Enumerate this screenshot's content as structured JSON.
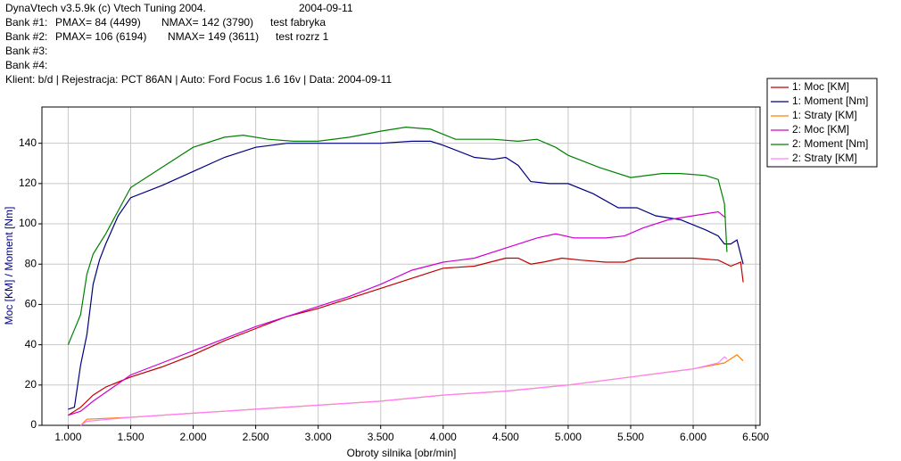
{
  "chart_data": {
    "type": "line",
    "header": {
      "program": "DynaVtech v3.5.9k (c) Vtech Tuning 2004.",
      "date": "2004-09-11",
      "banks": [
        {
          "label": "Bank #1:",
          "pmax": "PMAX= 84 (4499)",
          "nmax": "NMAX= 142 (3790)",
          "note": "test fabryka"
        },
        {
          "label": "Bank #2:",
          "pmax": "PMAX= 106 (6194)",
          "nmax": "NMAX= 149 (3611)",
          "note": "test rozrz 1"
        },
        {
          "label": "Bank #3:"
        },
        {
          "label": "Bank #4:"
        }
      ],
      "client": "Klient: b/d | Rejestracja: PCT 86AN | Auto: Ford Focus 1.6 16v | Data: 2004-09-11"
    },
    "x_label": "Obroty silnika [obr/min]",
    "y_label": "Moc [KM] / Moment [Nm]",
    "xlim": [
      790,
      6535
    ],
    "ylim": [
      0,
      158
    ],
    "xticks": [
      {
        "value": 1000,
        "label": "1.000"
      },
      {
        "value": 1500,
        "label": "1.500"
      },
      {
        "value": 2000,
        "label": "2.000"
      },
      {
        "value": 2500,
        "label": "2.500"
      },
      {
        "value": 3000,
        "label": "3.000"
      },
      {
        "value": 3500,
        "label": "3.500"
      },
      {
        "value": 4000,
        "label": "4.000"
      },
      {
        "value": 4500,
        "label": "4.500"
      },
      {
        "value": 5000,
        "label": "5.000"
      },
      {
        "value": 5500,
        "label": "5.500"
      },
      {
        "value": 6000,
        "label": "6.000"
      },
      {
        "value": 6500,
        "label": "6.500"
      }
    ],
    "yticks": [
      0,
      20,
      40,
      60,
      80,
      100,
      120,
      140
    ],
    "grid": true,
    "legend": "top-right",
    "series": [
      {
        "name": "1: Moc [KM]",
        "color": "#c00000",
        "x": [
          1000,
          1100,
          1200,
          1300,
          1500,
          1750,
          2000,
          2250,
          2500,
          2750,
          3000,
          3250,
          3500,
          3750,
          4000,
          4250,
          4500,
          4600,
          4700,
          4800,
          4950,
          5100,
          5300,
          5450,
          5550,
          5800,
          6000,
          6200,
          6300,
          6380,
          6400
        ],
        "values": [
          5,
          9,
          15,
          19,
          24,
          29,
          35,
          42,
          48,
          54,
          58,
          63,
          68,
          73,
          78,
          79,
          83,
          83,
          80,
          81,
          83,
          82,
          81,
          81,
          83,
          83,
          83,
          82,
          79,
          81,
          71
        ]
      },
      {
        "name": "1: Moment [Nm]",
        "color": "#000080",
        "x": [
          1000,
          1050,
          1100,
          1150,
          1200,
          1250,
          1300,
          1400,
          1500,
          1750,
          2000,
          2250,
          2500,
          2750,
          3000,
          3250,
          3500,
          3750,
          3900,
          4000,
          4250,
          4400,
          4500,
          4600,
          4700,
          4850,
          5000,
          5200,
          5400,
          5550,
          5700,
          5900,
          6100,
          6200,
          6250,
          6300,
          6350,
          6400
        ],
        "values": [
          8,
          9,
          30,
          45,
          70,
          82,
          90,
          104,
          113,
          119,
          126,
          133,
          138,
          140,
          140,
          140,
          140,
          141,
          141,
          139,
          133,
          132,
          133,
          129,
          121,
          120,
          120,
          115,
          108,
          108,
          104,
          102,
          97,
          94,
          90,
          90,
          92,
          80
        ]
      },
      {
        "name": "1: Straty [KM]",
        "color": "#ff8000",
        "x": [
          1100,
          1150,
          1500,
          2000,
          2500,
          3000,
          3500,
          4000,
          4500,
          5000,
          5500,
          6000,
          6250,
          6350,
          6400
        ],
        "values": [
          0,
          3,
          4,
          6,
          8,
          10,
          12,
          15,
          17,
          20,
          24,
          28,
          31,
          35,
          32
        ]
      },
      {
        "name": "2: Moc [KM]",
        "color": "#d000d0",
        "x": [
          1000,
          1100,
          1200,
          1500,
          1750,
          2000,
          2250,
          2500,
          2750,
          3000,
          3250,
          3500,
          3750,
          4000,
          4250,
          4500,
          4750,
          4900,
          5050,
          5300,
          5450,
          5600,
          5800,
          6000,
          6200,
          6260
        ],
        "values": [
          5,
          7,
          12,
          25,
          31,
          37,
          43,
          49,
          54,
          59,
          64,
          70,
          77,
          81,
          83,
          88,
          93,
          95,
          93,
          93,
          94,
          98,
          102,
          104,
          106,
          103
        ]
      },
      {
        "name": "2: Moment [Nm]",
        "color": "#008000",
        "x": [
          1000,
          1100,
          1150,
          1200,
          1300,
          1500,
          1750,
          2000,
          2250,
          2400,
          2600,
          2800,
          3000,
          3250,
          3500,
          3700,
          3900,
          4100,
          4400,
          4600,
          4750,
          4900,
          5000,
          5250,
          5500,
          5750,
          5900,
          6100,
          6200,
          6250,
          6270
        ],
        "values": [
          40,
          55,
          75,
          85,
          95,
          118,
          128,
          138,
          143,
          144,
          142,
          141,
          141,
          143,
          146,
          148,
          147,
          142,
          142,
          141,
          142,
          138,
          134,
          128,
          123,
          125,
          125,
          124,
          122,
          110,
          86
        ]
      },
      {
        "name": "2: Straty [KM]",
        "color": "#ff80ff",
        "x": [
          1100,
          1150,
          1500,
          2000,
          2500,
          3000,
          3500,
          4000,
          4500,
          5000,
          5500,
          6000,
          6200,
          6250,
          6270
        ],
        "values": [
          0,
          2,
          4,
          6,
          8,
          10,
          12,
          15,
          17,
          20,
          24,
          28,
          31,
          34,
          33
        ]
      }
    ]
  }
}
